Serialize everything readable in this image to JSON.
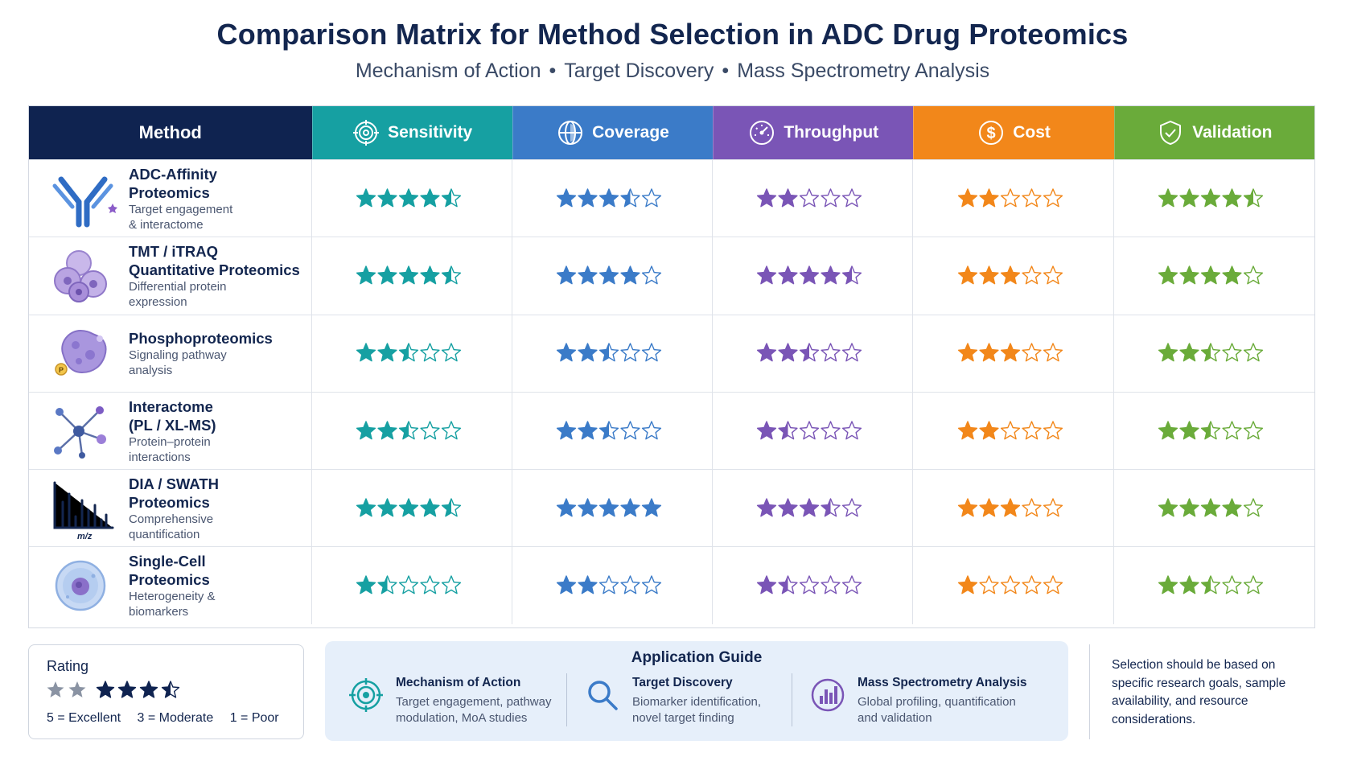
{
  "title": "Comparison Matrix for Method Selection in ADC Drug Proteomics",
  "subtitle": {
    "part1": "Mechanism of Action",
    "part2": "Target Discovery",
    "part3": "Mass Spectrometry Analysis",
    "separator": "•"
  },
  "colors": {
    "navy": "#0f2350",
    "sensitivity": "#16a0a2",
    "coverage": "#3b7bc8",
    "throughput": "#7a55b6",
    "cost": "#f2871a",
    "validation": "#6aab3a"
  },
  "header": {
    "method": "Method",
    "columns": [
      {
        "label": "Sensitivity",
        "icon": "target-icon",
        "color": "#16a0a2"
      },
      {
        "label": "Coverage",
        "icon": "globe-icon",
        "color": "#3b7bc8"
      },
      {
        "label": "Throughput",
        "icon": "gauge-icon",
        "color": "#7a55b6"
      },
      {
        "label": "Cost",
        "icon": "dollar-icon",
        "color": "#f2871a"
      },
      {
        "label": "Validation",
        "icon": "shield-check-icon",
        "color": "#6aab3a"
      }
    ]
  },
  "methods": [
    {
      "name1": "ADC-Affinity",
      "name2": "Proteomics",
      "desc1": "Target engagement",
      "desc2": "& interactome",
      "icon": "antibody-icon",
      "ratings": [
        4.5,
        3.5,
        2,
        2,
        4.5
      ]
    },
    {
      "name1": "TMT / iTRAQ",
      "name2": "Quantitative Proteomics",
      "desc1": "Differential protein",
      "desc2": "expression",
      "icon": "cells-icon",
      "ratings": [
        4.5,
        4,
        4.5,
        3,
        4
      ]
    },
    {
      "name1": "Phosphoproteomics",
      "name2": "",
      "desc1": "Signaling pathway",
      "desc2": "analysis",
      "icon": "phospho-protein-icon",
      "ratings": [
        2.5,
        2.5,
        2.5,
        3,
        2.5
      ]
    },
    {
      "name1": "Interactome",
      "name2": "(PL / XL-MS)",
      "desc1": "Protein–protein",
      "desc2": "interactions",
      "icon": "network-icon",
      "ratings": [
        2.5,
        2.5,
        1.5,
        2,
        2.5
      ]
    },
    {
      "name1": "DIA / SWATH",
      "name2": "Proteomics",
      "desc1": "Comprehensive",
      "desc2": "quantification",
      "icon": "spectrum-icon",
      "ratings": [
        4.5,
        5,
        3.5,
        3,
        4
      ]
    },
    {
      "name1": "Single-Cell",
      "name2": "Proteomics",
      "desc1": "Heterogeneity &",
      "desc2": "biomarkers",
      "icon": "single-cell-icon",
      "ratings": [
        1.5,
        2,
        1.5,
        1,
        2.5
      ]
    }
  ],
  "spectrum_axis_label": "m/z",
  "rating_box": {
    "title": "Rating",
    "legend": [
      "5 = Excellent",
      "3 = Moderate",
      "1 = Poor"
    ]
  },
  "application_guide": {
    "title": "Application Guide",
    "items": [
      {
        "title": "Mechanism of Action",
        "desc1": "Target engagement, pathway",
        "desc2": "modulation, MoA studies",
        "icon": "target-icon"
      },
      {
        "title": "Target Discovery",
        "desc1": "Biomarker identification,",
        "desc2": "novel target finding",
        "icon": "magnifier-icon"
      },
      {
        "title": "Mass Spectrometry Analysis",
        "desc1": "Global profiling, quantification",
        "desc2": "and validation",
        "icon": "ms-chart-icon"
      }
    ]
  },
  "note": "Selection should be based on specific research goals, sample availability, and resource considerations."
}
